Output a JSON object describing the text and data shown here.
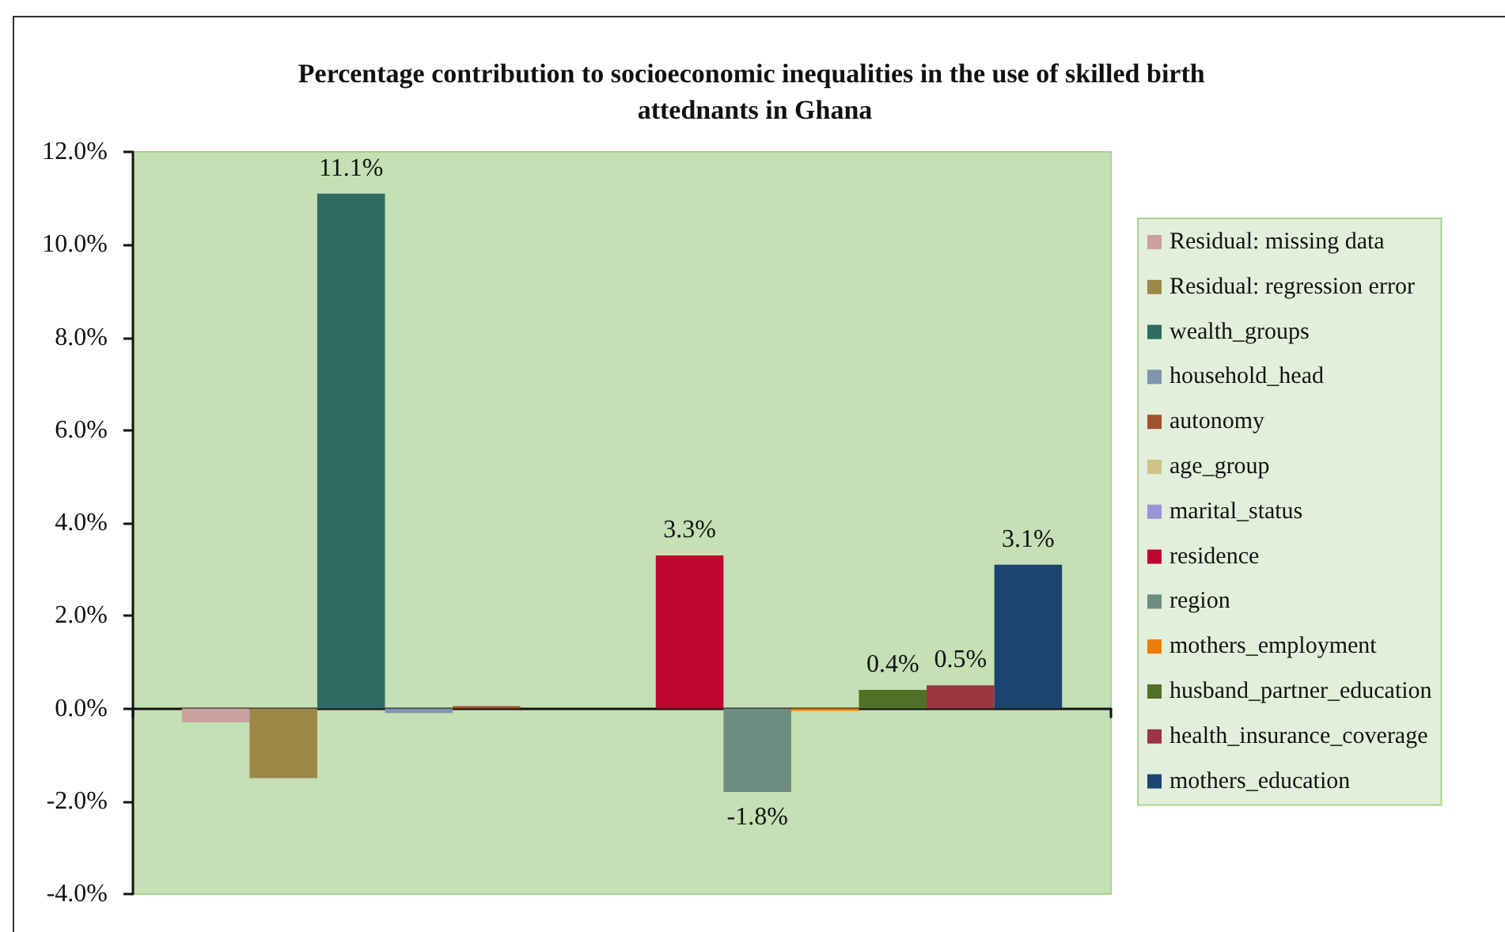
{
  "chart_data": {
    "type": "bar",
    "title": "Percentage contribution to socioeconomic inequalities in the use of skilled birth attednants in Ghana",
    "categories": [
      null
    ],
    "series": [
      {
        "name": "Residual: missing data",
        "color": "#c9a1a0",
        "values": [
          -0.3
        ]
      },
      {
        "name": "Residual: regression error",
        "color": "#9c8747",
        "values": [
          -1.5
        ]
      },
      {
        "name": "wealth_groups",
        "color": "#2e6b62",
        "values": [
          11.1
        ],
        "value_labels": [
          "11.1%"
        ]
      },
      {
        "name": "household_head",
        "color": "#7f94ad",
        "values": [
          -0.1
        ]
      },
      {
        "name": "autonomy",
        "color": "#a0522d",
        "values": [
          0.05
        ]
      },
      {
        "name": "age_group",
        "color": "#cfc38a",
        "values": [
          0
        ]
      },
      {
        "name": "marital_status",
        "color": "#9b93d6",
        "values": [
          0
        ]
      },
      {
        "name": "residence",
        "color": "#c0062f",
        "values": [
          3.3
        ],
        "value_labels": [
          "3.3%"
        ]
      },
      {
        "name": "region",
        "color": "#6e8d82",
        "values": [
          -1.8
        ],
        "value_labels": [
          "-1.8%"
        ]
      },
      {
        "name": "mothers_employment",
        "color": "#ed7d0b",
        "values": [
          -0.05
        ]
      },
      {
        "name": "husband_partner_education",
        "color": "#4f7127",
        "values": [
          0.4
        ],
        "value_labels": [
          "0.4%"
        ]
      },
      {
        "name": "health_insurance_coverage",
        "color": "#9b3540",
        "values": [
          0.5
        ],
        "value_labels": [
          "0.5%"
        ]
      },
      {
        "name": "mothers_education",
        "color": "#1b456f",
        "values": [
          3.1
        ],
        "value_labels": [
          "3.1%"
        ]
      }
    ],
    "ylim": [
      -4,
      12
    ],
    "yticks": [
      {
        "value": -4,
        "label": "-4.0%"
      },
      {
        "value": -2,
        "label": "-2.0%"
      },
      {
        "value": 0,
        "label": "0.0%"
      },
      {
        "value": 2,
        "label": "2.0%"
      },
      {
        "value": 4,
        "label": "4.0%"
      },
      {
        "value": 6,
        "label": "6.0%"
      },
      {
        "value": 8,
        "label": "8.0%"
      },
      {
        "value": 10,
        "label": "10.0%"
      },
      {
        "value": 12,
        "label": "12.0%"
      }
    ],
    "tick_labels": "y",
    "legend": "right"
  }
}
